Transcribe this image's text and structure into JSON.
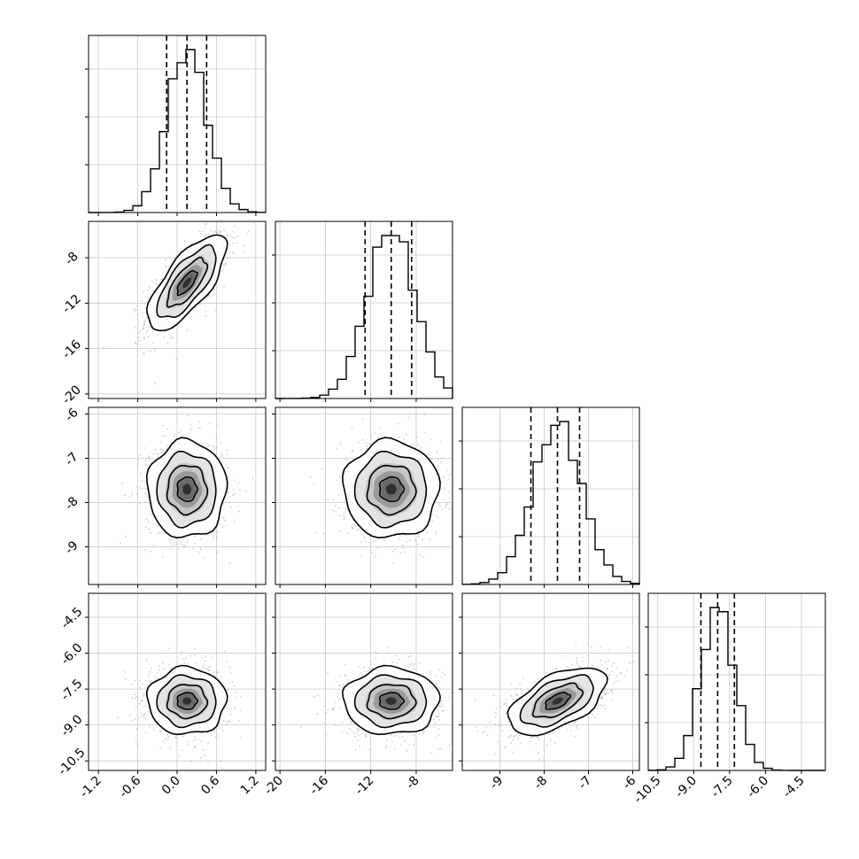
{
  "chart_data": {
    "type": "corner",
    "grid": true,
    "variables": [
      {
        "index": 0,
        "range": [
          -1.35,
          1.35
        ],
        "ticks": [
          "-1.2",
          "-0.6",
          "0.0",
          "0.6",
          "1.2"
        ],
        "tick_values": [
          -1.2,
          -0.6,
          0.0,
          0.6,
          1.2
        ],
        "median": 0.15,
        "q16": -0.16,
        "q84": 0.45,
        "sd": 0.3
      },
      {
        "index": 1,
        "range": [
          -20.4,
          -4.8
        ],
        "ticks": [
          "-20",
          "-16",
          "-12",
          "-8"
        ],
        "tick_values": [
          -20,
          -16,
          -12,
          -8
        ],
        "median": -10.2,
        "q16": -12.5,
        "q84": -8.4,
        "sd": 2.1
      },
      {
        "index": 2,
        "range": [
          -9.85,
          -5.85
        ],
        "ticks": [
          "-9",
          "-8",
          "-7",
          "-6"
        ],
        "tick_values": [
          -9,
          -8,
          -7,
          -6
        ],
        "median": -7.7,
        "q16": -8.3,
        "q84": -7.2,
        "sd": 0.55
      },
      {
        "index": 3,
        "range": [
          -10.9,
          -3.5
        ],
        "ticks": [
          "-10.5",
          "-9.0",
          "-7.5",
          "-6.0",
          "-4.5"
        ],
        "tick_values": [
          -10.5,
          -9.0,
          -7.5,
          -6.0,
          -4.5
        ],
        "median": -8.0,
        "q16": -8.7,
        "q84": -7.3,
        "sd": 0.7
      }
    ],
    "y_axis_ticks": {
      "1": {
        "ticks": [
          "-20",
          "-16",
          "-12",
          "-8"
        ],
        "tick_values": [
          -20,
          -16,
          -12,
          -8
        ]
      },
      "2": {
        "ticks": [
          "-9",
          "-8",
          "-7",
          "-6"
        ],
        "tick_values": [
          -9,
          -8,
          -7,
          -6
        ]
      },
      "3": {
        "ticks": [
          "-10.5",
          "-9.0",
          "-7.5",
          "-6.0",
          "-4.5"
        ],
        "tick_values": [
          -10.5,
          -9.0,
          -7.5,
          -6.0,
          -4.5
        ]
      }
    },
    "correlations": {
      "1-0": 0.72,
      "2-0": 0.0,
      "2-1": 0.0,
      "3-0": 0.0,
      "3-1": 0.0,
      "3-2": 0.55
    },
    "quantile_line_style": "dashed",
    "histogram_style": "step",
    "contour_levels": 4,
    "scatter_color": "#9a9a9a"
  }
}
